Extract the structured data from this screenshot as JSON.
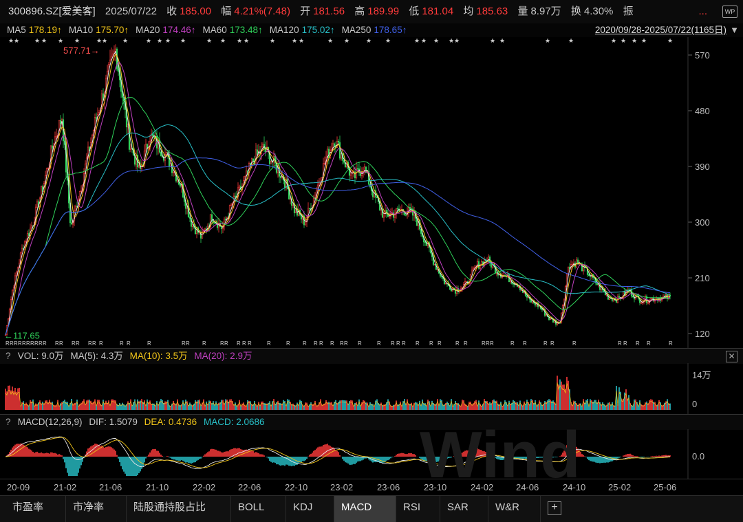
{
  "quote": {
    "symbol": "300896.SZ[爱美客]",
    "date": "2025/07/22",
    "close_label": "收",
    "close": "185.00",
    "change_label": "幅",
    "change": "4.21%(7.48)",
    "open_label": "开",
    "open": "181.56",
    "high_label": "高",
    "high": "189.99",
    "low_label": "低",
    "low": "181.04",
    "avg_label": "均",
    "avg": "185.63",
    "vol_label": "量",
    "vol": "8.97万",
    "turnover_label": "换",
    "turnover": "4.30%",
    "amp_label": "振",
    "more": "...",
    "wp_icon": "WP"
  },
  "ma_legend": {
    "items": [
      {
        "name": "MA5",
        "value": "178.19↑",
        "color": "#f0c419"
      },
      {
        "name": "MA10",
        "value": "175.70↑",
        "color": "#f0c419"
      },
      {
        "name": "MA20",
        "value": "174.46↑",
        "color": "#c040c0"
      },
      {
        "name": "MA60",
        "value": "173.48↑",
        "color": "#2fd25a"
      },
      {
        "name": "MA120",
        "value": "175.02↑",
        "color": "#28c0c8"
      },
      {
        "name": "MA250",
        "value": "178.65↑",
        "color": "#4060e8"
      }
    ],
    "range": "2020/09/28-2025/07/22(1165日)",
    "gear_icon": "▼"
  },
  "main_chart": {
    "y_ticks": [
      "570",
      "480",
      "390",
      "300",
      "210",
      "120"
    ],
    "high_mark": "577.71→",
    "low_mark": "←117.65"
  },
  "volume": {
    "help": "?",
    "label": "VOL: 9.0万",
    "ma5": "MA(5): 4.3万",
    "ma10": "MA(10): 3.5万",
    "ma20": "MA(20): 2.9万",
    "y_top": "14万",
    "y_zero": "0",
    "close_icon": "✕"
  },
  "macd": {
    "help": "?",
    "label": "MACD(12,26,9)",
    "dif": "DIF: 1.5079",
    "dea": "DEA: 0.4736",
    "macd": "MACD: 2.0686",
    "y_zero": "0.0"
  },
  "x_labels": [
    "20-09",
    "21-02",
    "21-06",
    "21-10",
    "22-02",
    "22-06",
    "22-10",
    "23-02",
    "23-06",
    "23-10",
    "24-02",
    "24-06",
    "24-10",
    "25-02",
    "25-06"
  ],
  "tabs": [
    {
      "label": "市盈率",
      "active": false
    },
    {
      "label": "市净率",
      "active": false
    },
    {
      "label": "陆股通持股占比",
      "active": false
    },
    {
      "label": "BOLL",
      "active": false
    },
    {
      "label": "KDJ",
      "active": false
    },
    {
      "label": "MACD",
      "active": true
    },
    {
      "label": "RSI",
      "active": false
    },
    {
      "label": "SAR",
      "active": false
    },
    {
      "label": "W&R",
      "active": false
    }
  ],
  "plus_icon": "+",
  "chart_data": {
    "type": "line",
    "title": "",
    "ylim": [
      110,
      590
    ],
    "series_anchor_points": [
      [
        0,
        118
      ],
      [
        10,
        190
      ],
      [
        25,
        260
      ],
      [
        40,
        300
      ],
      [
        55,
        360
      ],
      [
        70,
        430
      ],
      [
        82,
        470
      ],
      [
        95,
        290
      ],
      [
        110,
        360
      ],
      [
        130,
        460
      ],
      [
        145,
        520
      ],
      [
        155,
        560
      ],
      [
        160,
        578
      ],
      [
        168,
        520
      ],
      [
        180,
        430
      ],
      [
        195,
        380
      ],
      [
        210,
        440
      ],
      [
        225,
        420
      ],
      [
        240,
        395
      ],
      [
        255,
        360
      ],
      [
        270,
        300
      ],
      [
        285,
        275
      ],
      [
        300,
        310
      ],
      [
        315,
        290
      ],
      [
        330,
        330
      ],
      [
        345,
        360
      ],
      [
        360,
        400
      ],
      [
        375,
        420
      ],
      [
        390,
        395
      ],
      [
        405,
        370
      ],
      [
        420,
        320
      ],
      [
        435,
        300
      ],
      [
        450,
        345
      ],
      [
        465,
        400
      ],
      [
        478,
        435
      ],
      [
        490,
        405
      ],
      [
        505,
        370
      ],
      [
        520,
        390
      ],
      [
        535,
        345
      ],
      [
        550,
        310
      ],
      [
        565,
        315
      ],
      [
        580,
        320
      ],
      [
        595,
        310
      ],
      [
        610,
        270
      ],
      [
        625,
        230
      ],
      [
        640,
        200
      ],
      [
        655,
        190
      ],
      [
        670,
        200
      ],
      [
        685,
        230
      ],
      [
        700,
        240
      ],
      [
        715,
        220
      ],
      [
        730,
        210
      ],
      [
        745,
        200
      ],
      [
        760,
        175
      ],
      [
        775,
        165
      ],
      [
        790,
        145
      ],
      [
        805,
        135
      ],
      [
        812,
        180
      ],
      [
        818,
        230
      ],
      [
        830,
        235
      ],
      [
        845,
        220
      ],
      [
        860,
        200
      ],
      [
        875,
        180
      ],
      [
        890,
        175
      ],
      [
        905,
        190
      ],
      [
        920,
        175
      ],
      [
        935,
        175
      ],
      [
        950,
        178
      ],
      [
        965,
        178
      ],
      [
        975,
        185
      ]
    ]
  }
}
